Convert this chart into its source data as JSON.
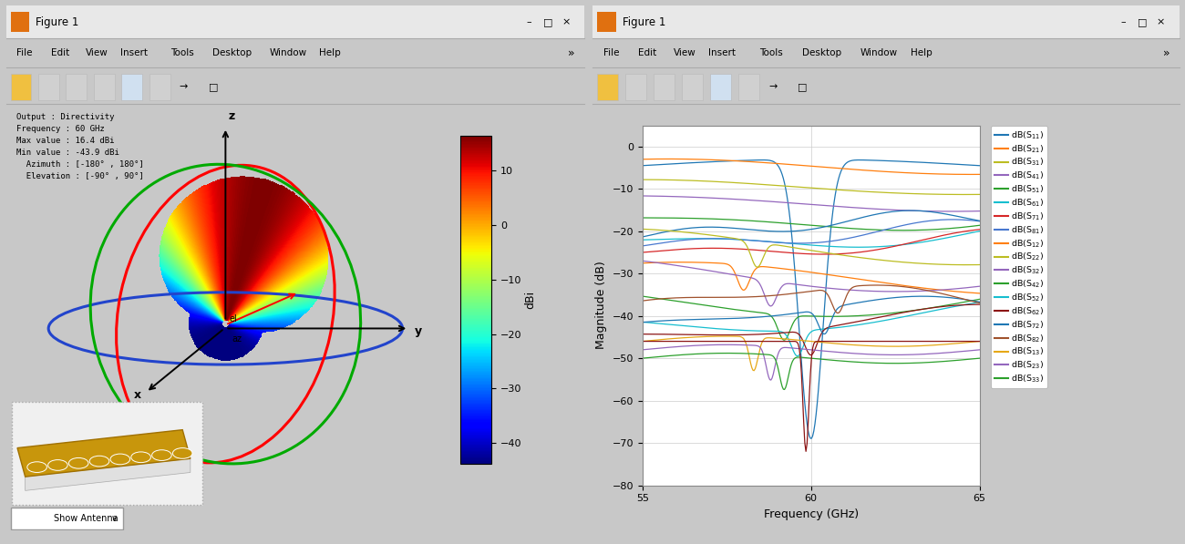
{
  "fig_bg": "#c8c8c8",
  "window_bg": "#f0f0f0",
  "plot_bg": "#ffffff",
  "figure_title": "Figure 1",
  "left_panel": {
    "info_text": "Output : Directivity\nFrequency : 60 GHz\nMax value : 16.4 dBi\nMin value : -43.9 dBi\n  Azimuth : [-180° , 180°]\n  Elevation : [-90° , 90°]",
    "colorbar_ticks": [
      10,
      0,
      -10,
      -20,
      -30,
      -40
    ],
    "colorbar_label": "dBi",
    "colorbar_min": -43.9,
    "colorbar_max": 16.4,
    "show_antenna_text": "Show Antenna"
  },
  "right_panel": {
    "xlabel": "Frequency (GHz)",
    "ylabel": "Magnitude (dB)",
    "xlim": [
      55,
      65
    ],
    "ylim": [
      -80,
      5
    ],
    "xticks": [
      55,
      60,
      65
    ],
    "yticks": [
      0,
      -10,
      -20,
      -30,
      -40,
      -50,
      -60,
      -70,
      -80
    ],
    "legend_entries": [
      "dB(S_{11})",
      "dB(S_{21})",
      "dB(S_{31})",
      "dB(S_{41})",
      "dB(S_{51})",
      "dB(S_{61})",
      "dB(S_{71})",
      "dB(S_{81})",
      "dB(S_{12})",
      "dB(S_{22})",
      "dB(S_{32})",
      "dB(S_{42})",
      "dB(S_{52})",
      "dB(S_{62})",
      "dB(S_{72})",
      "dB(S_{82})",
      "dB(S_{13})",
      "dB(S_{23})",
      "dB(S_{33})"
    ],
    "legend_colors": [
      "#1f77b4",
      "#ff7f0e",
      "#bcbd22",
      "#9467bd",
      "#2ca02c",
      "#17becf",
      "#d62728",
      "#4878cf",
      "#ff7f0e",
      "#bcbd22",
      "#9467bd",
      "#2ca02c",
      "#17becf",
      "#8c1515",
      "#1f77b4",
      "#a0522d",
      "#e6a817",
      "#9467bd",
      "#2ca02c"
    ]
  }
}
